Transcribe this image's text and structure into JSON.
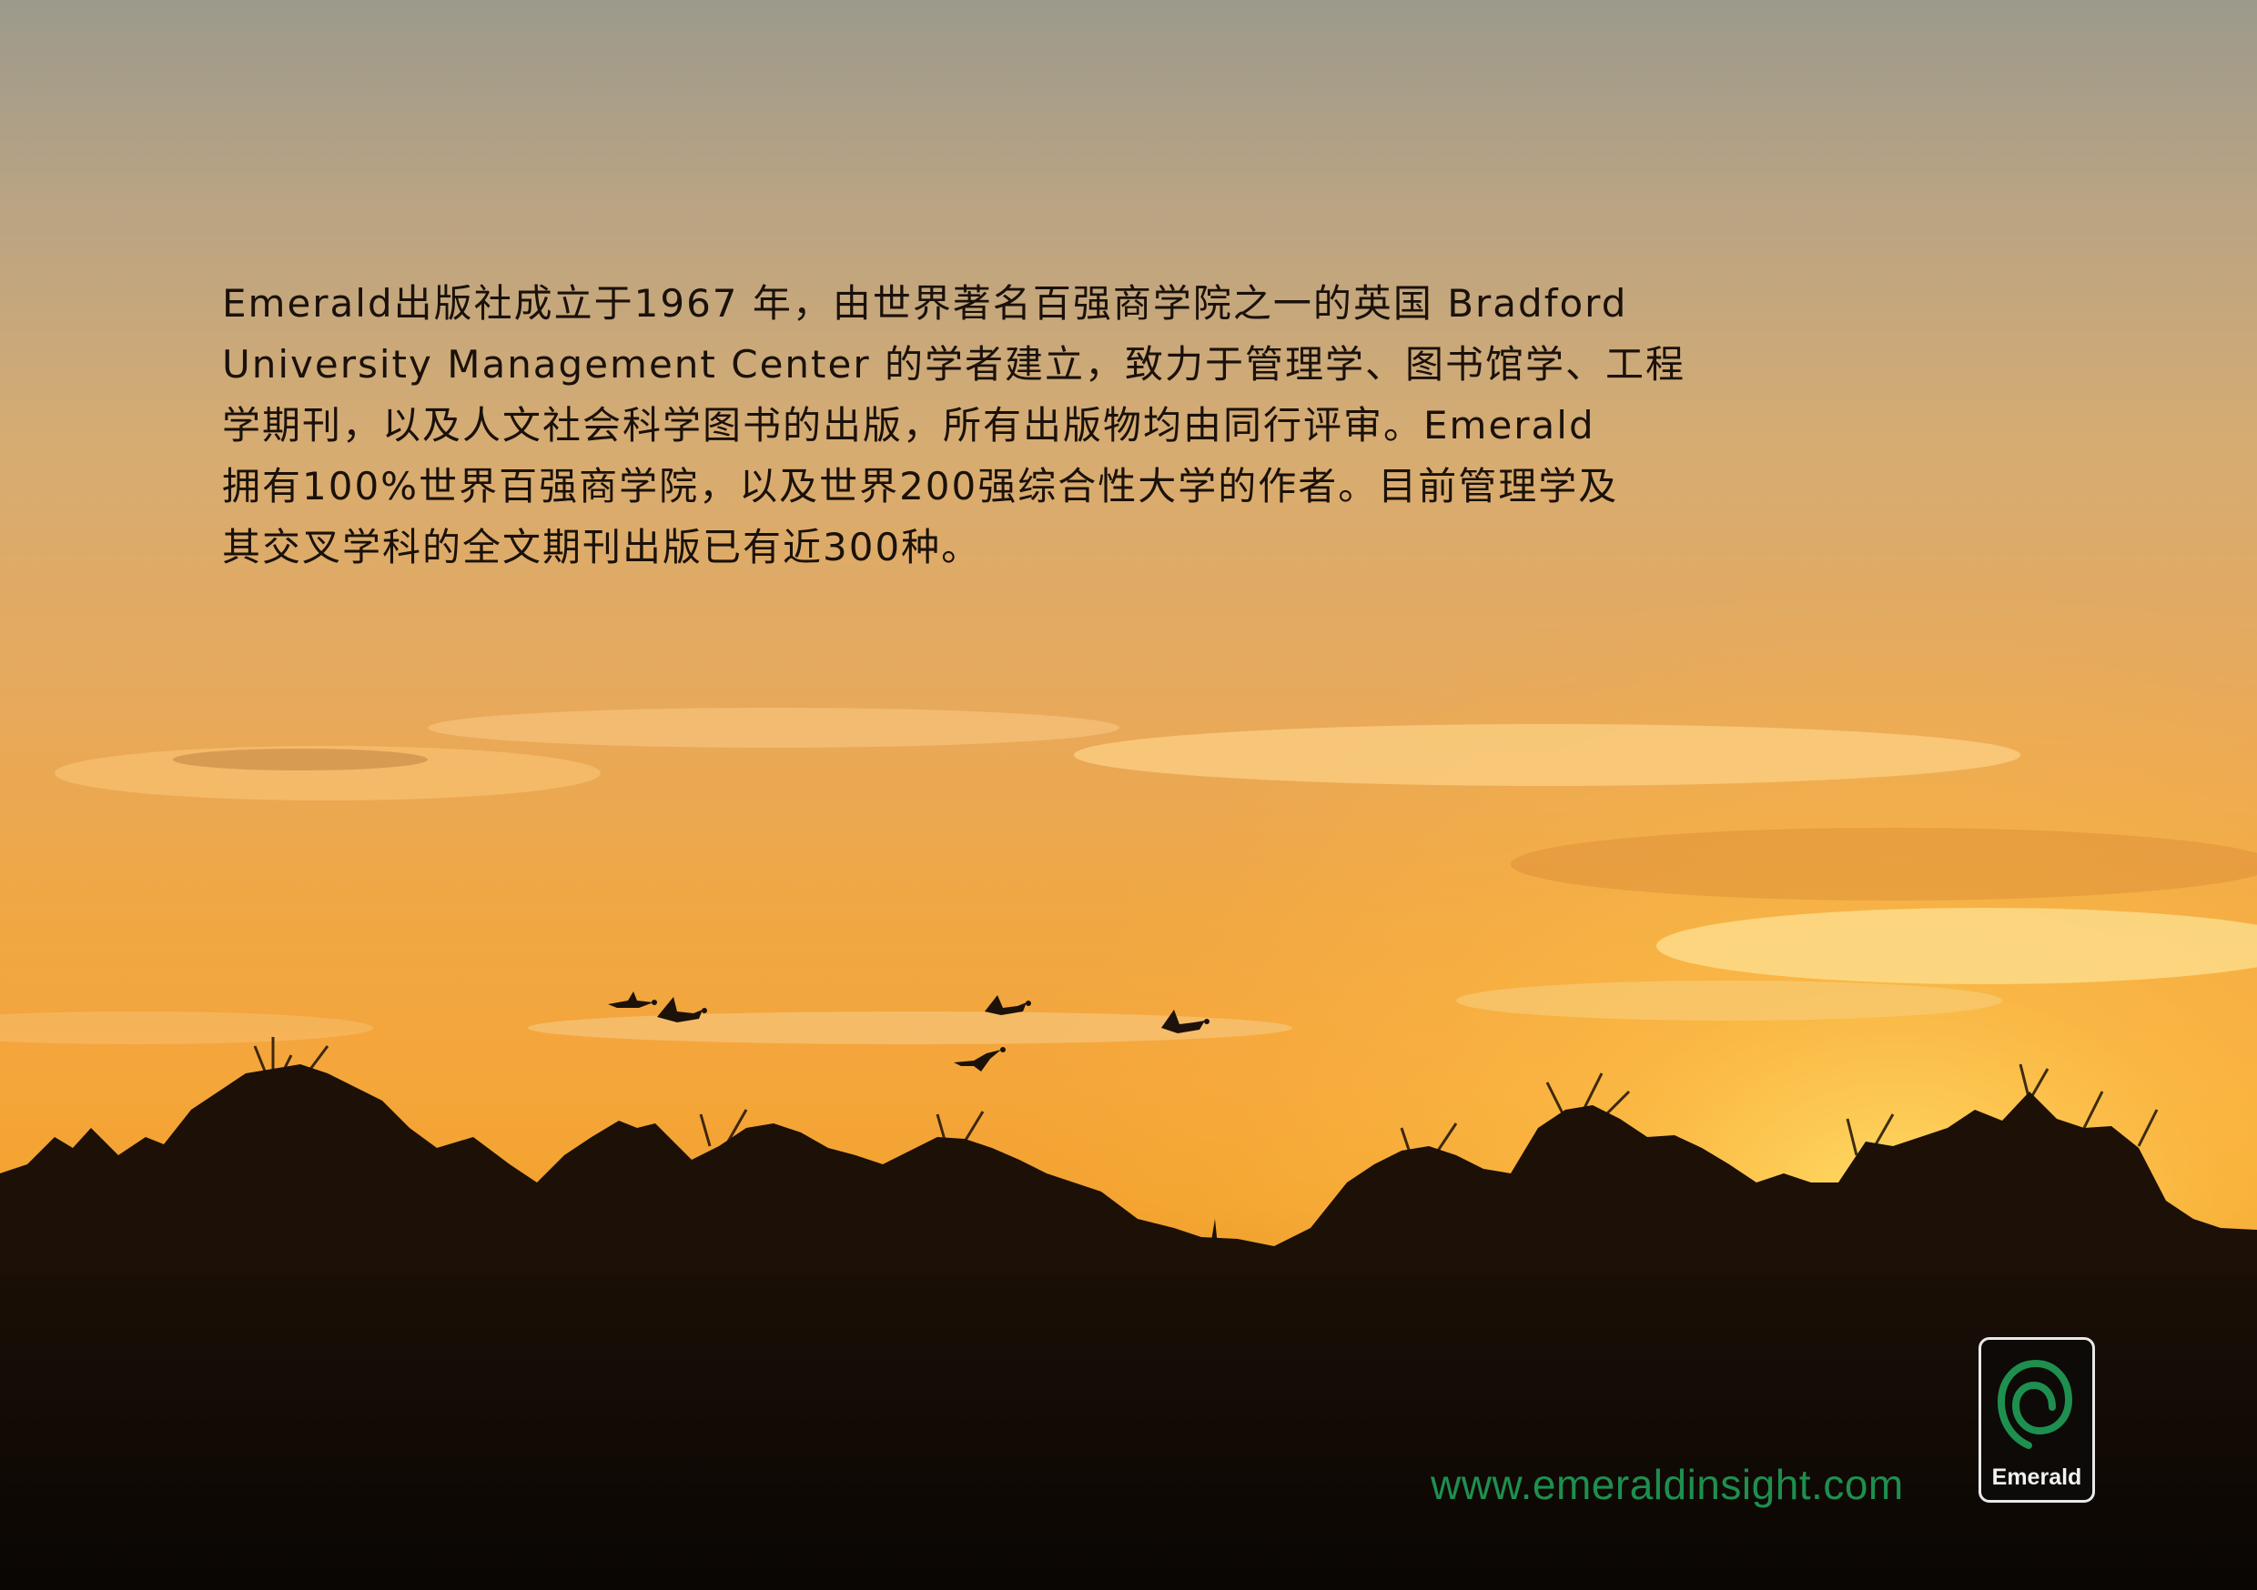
{
  "intro": {
    "lines": [
      "Emerald出版社成立于1967 年，由世界著名百强商学院之一的英国 Bradford",
      "University Management Center 的学者建立，致力于管理学、图书馆学、工程",
      "学期刊，以及人文社会科学图书的出版，所有出版物均由同行评审。Emerald",
      "拥有100%世界百强商学院，以及世界200强综合性大学的作者。目前管理学及",
      "其交叉学科的全文期刊出版已有近300种。"
    ]
  },
  "footer": {
    "url": "www.emeraldinsight.com",
    "logo_text": "Emerald"
  },
  "colors": {
    "url_green": "#1e8f4e",
    "logo_green": "#1e8f4e",
    "text": "#1a110a"
  },
  "icons": {
    "logo": "emerald-spiral-logo",
    "birds": "flying-geese-silhouette"
  }
}
